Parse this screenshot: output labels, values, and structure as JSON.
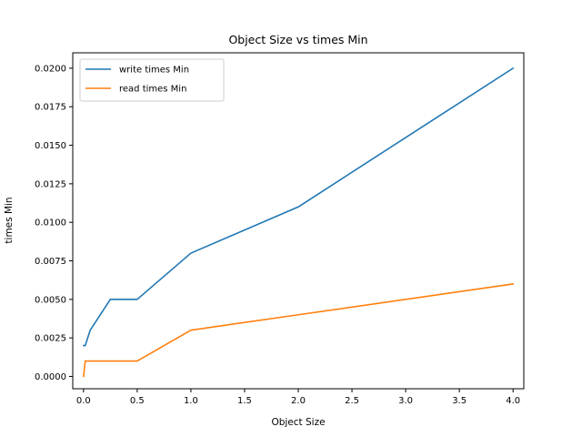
{
  "chart_data": {
    "type": "line",
    "title": "Object Size vs times Min",
    "xlabel": "Object Size",
    "ylabel": "times Min",
    "xlim": [
      -0.1,
      4.1
    ],
    "ylim": [
      -0.0008,
      0.021
    ],
    "xticks": [
      0.0,
      0.5,
      1.0,
      1.5,
      2.0,
      2.5,
      3.0,
      3.5,
      4.0
    ],
    "xtick_labels": [
      "0.0",
      "0.5",
      "1.0",
      "1.5",
      "2.0",
      "2.5",
      "3.0",
      "3.5",
      "4.0"
    ],
    "yticks": [
      0.0,
      0.0025,
      0.005,
      0.0075,
      0.01,
      0.0125,
      0.015,
      0.0175,
      0.02
    ],
    "ytick_labels": [
      "0.0000",
      "0.0025",
      "0.0050",
      "0.0075",
      "0.0100",
      "0.0125",
      "0.0150",
      "0.0175",
      "0.0200"
    ],
    "grid": false,
    "legend_position": "top-left",
    "series": [
      {
        "name": "write times Min",
        "color": "#1f77b4",
        "x": [
          0.001,
          0.016,
          0.0625,
          0.25,
          0.5,
          1.0,
          2.0,
          4.0
        ],
        "y": [
          0.002,
          0.002,
          0.003,
          0.005,
          0.005,
          0.008,
          0.011,
          0.02
        ]
      },
      {
        "name": "read times Min",
        "color": "#ff7f0e",
        "x": [
          0.001,
          0.016,
          0.0625,
          0.25,
          0.5,
          1.0,
          2.0,
          4.0
        ],
        "y": [
          0.0,
          0.001,
          0.001,
          0.001,
          0.001,
          0.003,
          0.004,
          0.006
        ]
      }
    ]
  }
}
